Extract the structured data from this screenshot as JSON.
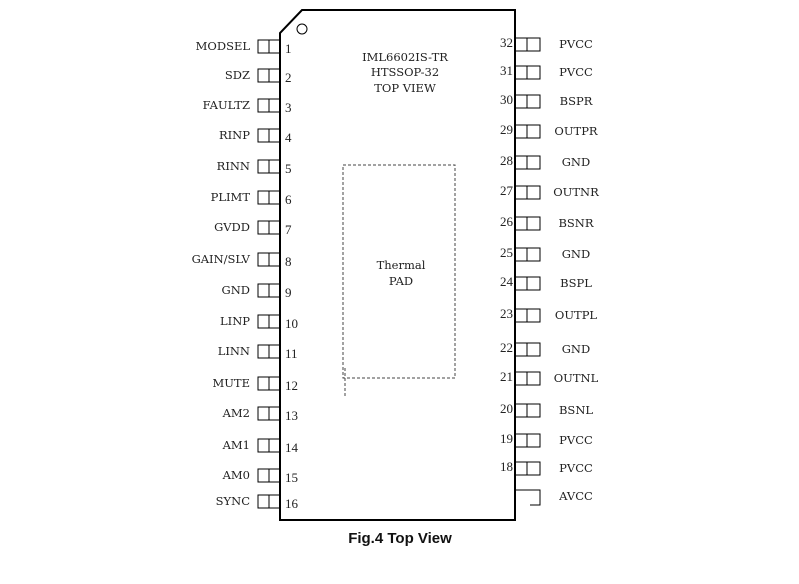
{
  "chip": {
    "part_number": "IML6602IS-TR",
    "package": "HTSSOP-32",
    "view": "TOP VIEW",
    "thermal_pad": [
      "Thermal",
      "PAD"
    ]
  },
  "left_pins": [
    {
      "num": "1",
      "name": "MODSEL"
    },
    {
      "num": "2",
      "name": "SDZ"
    },
    {
      "num": "3",
      "name": "FAULTZ"
    },
    {
      "num": "4",
      "name": "RINP"
    },
    {
      "num": "5",
      "name": "RINN"
    },
    {
      "num": "6",
      "name": "PLIMT"
    },
    {
      "num": "7",
      "name": "GVDD"
    },
    {
      "num": "8",
      "name": "GAIN/SLV"
    },
    {
      "num": "9",
      "name": "GND"
    },
    {
      "num": "10",
      "name": "LINP"
    },
    {
      "num": "11",
      "name": "LINN"
    },
    {
      "num": "12",
      "name": "MUTE"
    },
    {
      "num": "13",
      "name": "AM2"
    },
    {
      "num": "14",
      "name": "AM1"
    },
    {
      "num": "15",
      "name": "AM0"
    },
    {
      "num": "16",
      "name": "SYNC"
    }
  ],
  "right_pins": [
    {
      "num": "32",
      "name": "PVCC"
    },
    {
      "num": "31",
      "name": "PVCC"
    },
    {
      "num": "30",
      "name": "BSPR"
    },
    {
      "num": "29",
      "name": "OUTPR"
    },
    {
      "num": "28",
      "name": "GND"
    },
    {
      "num": "27",
      "name": "OUTNR"
    },
    {
      "num": "26",
      "name": "BSNR"
    },
    {
      "num": "25",
      "name": "GND"
    },
    {
      "num": "24",
      "name": "BSPL"
    },
    {
      "num": "23",
      "name": "OUTPL"
    },
    {
      "num": "22",
      "name": "GND"
    },
    {
      "num": "21",
      "name": "OUTNL"
    },
    {
      "num": "20",
      "name": "BSNL"
    },
    {
      "num": "19",
      "name": "PVCC"
    },
    {
      "num": "18",
      "name": "PVCC"
    },
    {
      "num": "",
      "name": "AVCC"
    }
  ],
  "caption": "Fig.4 Top View"
}
